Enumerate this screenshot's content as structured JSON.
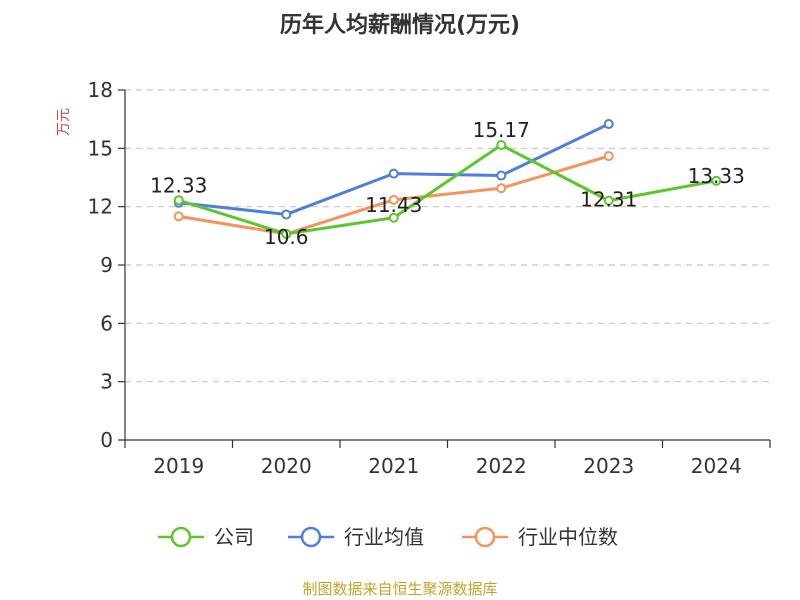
{
  "chart_data": {
    "type": "line",
    "title": "历年人均薪酬情况(万元)",
    "ylabel": "万元",
    "categories": [
      "2019",
      "2020",
      "2021",
      "2022",
      "2023",
      "2024"
    ],
    "ylim": [
      0,
      18
    ],
    "yticks": [
      0,
      3,
      6,
      9,
      12,
      15,
      18
    ],
    "grid": true,
    "legend_position": "bottom",
    "series": [
      {
        "name": "公司",
        "color": "#5cc72c",
        "values": [
          12.33,
          10.6,
          11.43,
          15.17,
          12.31,
          13.33
        ],
        "show_labels": true
      },
      {
        "name": "行业均值",
        "color": "#4e7fdb",
        "values": [
          12.2,
          11.6,
          13.7,
          13.6,
          16.25,
          null
        ],
        "show_labels": false
      },
      {
        "name": "行业中位数",
        "color": "#f5925d",
        "values": [
          11.5,
          10.6,
          12.35,
          12.95,
          14.6,
          null
        ],
        "show_labels": false
      }
    ],
    "data_labels": [
      "12.33",
      "10.6",
      "11.43",
      "15.17",
      "12.31",
      "13.33"
    ]
  },
  "source_note": "制图数据来自恒生聚源数据库"
}
